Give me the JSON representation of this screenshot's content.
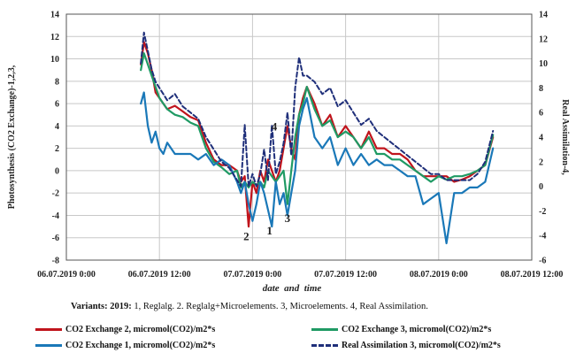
{
  "chart_data": {
    "type": "line",
    "xlabel": "date  and  time",
    "ylabel_left": "Photosynthesis (CO2 Exchange)-1,2,3,",
    "ylabel_right": "Real Assimilation-4,",
    "ylim_left": [
      -8,
      14
    ],
    "ylim_right": [
      -6,
      14
    ],
    "yticks_left": [
      "14",
      "12",
      "10",
      "8",
      "6",
      "4",
      "2",
      "0",
      "-2",
      "-4",
      "-6",
      "-8"
    ],
    "yticks_right": [
      "14",
      "12",
      "10",
      "8",
      "6",
      "4",
      "2",
      "0",
      "-2",
      "-4",
      "-6"
    ],
    "xticks": [
      "06.07.2019 0:00",
      "06.07.2019 12:00",
      "07.07.2019 0:00",
      "07.07.2019 12:00",
      "08.07.2019 0:00",
      "08.07.2019 12:00"
    ],
    "x_hours_range": [
      0,
      60
    ],
    "grid": true,
    "legend_position": "bottom",
    "series": [
      {
        "name": "CO2 Exchange 2, micromol(CO2)/m2*s",
        "color": "#c0141c",
        "axis": "left",
        "dash": false,
        "x": [
          9.6,
          10,
          10.5,
          11,
          11.5,
          12,
          12.5,
          13,
          14,
          15,
          16,
          17,
          18,
          19,
          20,
          21,
          22,
          22.5,
          23,
          23.5,
          24,
          24.5,
          25,
          25.5,
          26,
          26.5,
          27,
          27.5,
          28,
          28.5,
          29,
          29.5,
          30,
          30.5,
          31,
          32,
          33,
          34,
          35,
          36,
          37,
          38,
          39,
          40,
          41,
          42,
          43,
          44,
          45,
          46,
          47,
          48,
          49,
          50,
          51,
          52,
          53,
          54,
          55
        ],
        "values": [
          9.5,
          11.5,
          10.5,
          9,
          7,
          6.5,
          6,
          5.5,
          5.8,
          5.3,
          4.8,
          4.5,
          2.5,
          1,
          0.5,
          0.5,
          0,
          -1,
          -0.5,
          -5,
          -1,
          -2,
          0,
          -1,
          1,
          0,
          -1,
          0,
          2,
          4,
          2,
          1,
          5,
          6.5,
          7.5,
          6,
          4,
          5,
          3,
          4,
          3,
          2,
          3.5,
          2,
          2,
          1.5,
          1.5,
          1,
          0,
          -0.5,
          -0.5,
          -0.5,
          -0.5,
          -1,
          -0.8,
          -0.5,
          0,
          0.5,
          3
        ]
      },
      {
        "name": "CO2 Exchange 3, micromol(CO2)/m2*s",
        "color": "#1f9a64",
        "axis": "left",
        "dash": false,
        "x": [
          9.6,
          10,
          10.5,
          11,
          11.5,
          12,
          12.5,
          13,
          14,
          15,
          16,
          17,
          18,
          19,
          20,
          21,
          22,
          22.5,
          23,
          23.5,
          24,
          24.5,
          25,
          25.5,
          26,
          26.5,
          27,
          27.5,
          28,
          28.5,
          29,
          29.5,
          30,
          30.5,
          31,
          32,
          33,
          34,
          35,
          36,
          37,
          38,
          39,
          40,
          41,
          42,
          43,
          44,
          45,
          46,
          47,
          48,
          49,
          50,
          51,
          52,
          53,
          54,
          55
        ],
        "values": [
          9,
          10.5,
          9.5,
          8.5,
          7.5,
          6.5,
          6,
          5.5,
          5,
          4.8,
          4.3,
          4,
          2,
          0.8,
          0.3,
          -0.3,
          0,
          -1.5,
          -1,
          -1.5,
          -1,
          -1.3,
          -1,
          -1.5,
          0,
          -0.5,
          -1,
          -0.5,
          0,
          -3,
          0,
          3,
          5,
          6,
          7.5,
          5.5,
          4,
          4.5,
          3,
          3.5,
          3,
          2,
          3,
          1.5,
          1.5,
          1,
          1,
          0.5,
          0,
          -0.5,
          -1,
          -0.5,
          -0.8,
          -0.5,
          -0.5,
          -0.3,
          0,
          0.5,
          3.2
        ]
      },
      {
        "name": "CO2 Exchange 1, micromol(CO2)/m2*s",
        "color": "#1a78b8",
        "axis": "left",
        "dash": false,
        "x": [
          9.6,
          10,
          10.5,
          11,
          11.5,
          12,
          12.5,
          13,
          14,
          15,
          16,
          17,
          18,
          19,
          20,
          21,
          22,
          22.5,
          23,
          23.5,
          24,
          24.5,
          25,
          25.5,
          26,
          26.5,
          27,
          27.5,
          28,
          28.5,
          29,
          29.5,
          30,
          30.5,
          31,
          32,
          33,
          34,
          35,
          36,
          37,
          38,
          39,
          40,
          41,
          42,
          43,
          44,
          45,
          46,
          47,
          48,
          49,
          50,
          51,
          52,
          53,
          54,
          55
        ],
        "values": [
          6,
          7,
          4,
          2.5,
          3.5,
          2,
          1.5,
          2.5,
          1.5,
          1.5,
          1.5,
          1,
          1.5,
          0.5,
          1,
          0.5,
          -1,
          -2,
          -1,
          -3,
          -4.5,
          -3,
          -1,
          -2,
          -3.5,
          -5,
          -1,
          -3,
          -2,
          -4,
          -2,
          0,
          4,
          5.5,
          6.5,
          3,
          2,
          3,
          0.5,
          2,
          0.5,
          1.5,
          0.5,
          1,
          0.5,
          0.5,
          0,
          -0.5,
          -0.5,
          -3,
          -2.5,
          -2,
          -6.5,
          -2,
          -2,
          -1.5,
          -1.5,
          -1,
          2
        ]
      },
      {
        "name": "Real Assimilation 3, micromol(CO2)/m2*s",
        "color": "#1f2f7a",
        "axis": "right",
        "dash": true,
        "x": [
          9.6,
          10,
          10.5,
          11,
          11.5,
          12,
          12.5,
          13,
          14,
          15,
          16,
          17,
          18,
          19,
          20,
          21,
          22,
          22.5,
          23,
          23.5,
          24,
          24.5,
          25,
          25.5,
          26,
          26.5,
          27,
          27.5,
          28,
          28.5,
          29,
          29.5,
          30,
          30.5,
          31,
          32,
          33,
          34,
          35,
          36,
          37,
          38,
          39,
          40,
          41,
          42,
          43,
          44,
          45,
          46,
          47,
          48,
          49,
          50,
          51,
          52,
          53,
          54,
          55
        ],
        "values": [
          10,
          12.5,
          11,
          9.5,
          8.5,
          8,
          7.5,
          7,
          7.5,
          6.5,
          6,
          5.5,
          4,
          3,
          2,
          1.5,
          0.5,
          0,
          5,
          0,
          1,
          0,
          1,
          3,
          0.5,
          5,
          1,
          2,
          3.5,
          6,
          2.5,
          8,
          10.5,
          9,
          9,
          8.5,
          7.5,
          8,
          6.5,
          7,
          6,
          5,
          5.5,
          4.5,
          4,
          3.5,
          3,
          2.5,
          2,
          1.5,
          1,
          1,
          0.5,
          0.5,
          0.5,
          0.5,
          1,
          2,
          4.5
        ]
      }
    ],
    "annotations": [
      {
        "text": "4",
        "x": 26.8,
        "y": 3.6
      },
      {
        "text": "2",
        "x": 23.2,
        "y": -6.2
      },
      {
        "text": "1",
        "x": 26.2,
        "y": -5.7
      },
      {
        "text": "3",
        "x": 28.5,
        "y": -4.6
      }
    ]
  },
  "variants": {
    "prefix": "Variants: 2019:",
    "text": " 1, Reglalg. 2. Reglalg+Microelements. 3, Microelements. 4, Real Assimilation."
  }
}
